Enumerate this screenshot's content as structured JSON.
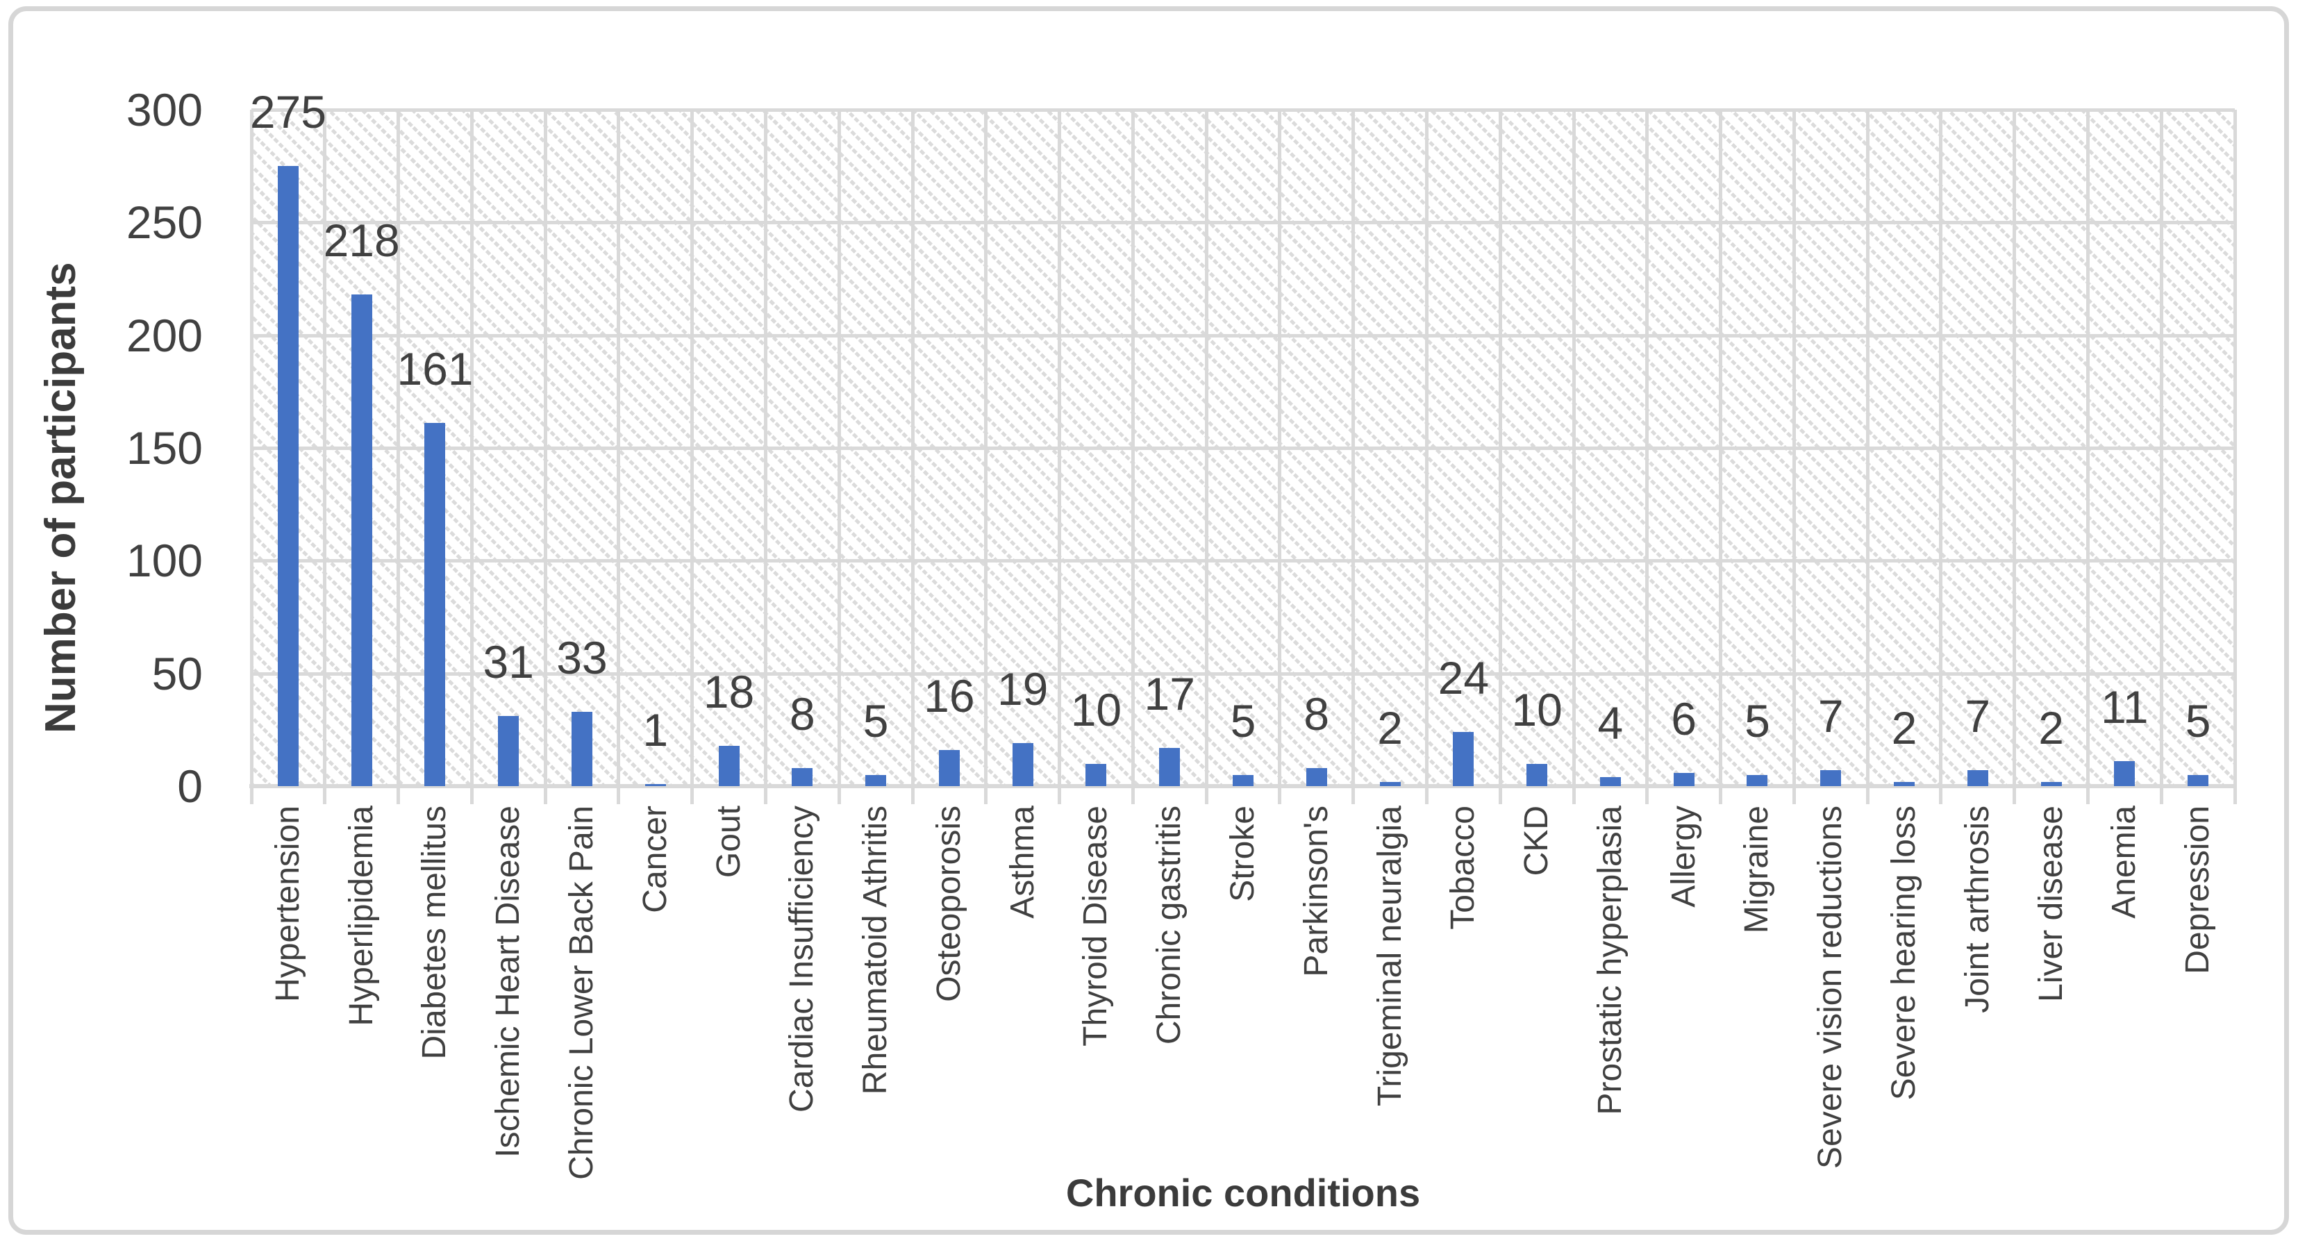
{
  "figure": {
    "background": "#ffffff",
    "border_color": "#d6d6d6"
  },
  "chart_data": {
    "type": "bar",
    "title": "",
    "xlabel": "Chronic conditions",
    "ylabel": "Number of participants",
    "categories": [
      "Hypertension",
      "Hyperlipidemia",
      "Diabetes mellitus",
      "Ischemic Heart Disease",
      "Chronic Lower Back Pain",
      "Cancer",
      "Gout",
      "Cardiac Insufficiency",
      "Rheumatoid Athritis",
      "Osteoporosis",
      "Asthma",
      "Thyroid Disease",
      "Chronic gastritis",
      "Stroke",
      "Parkinson's",
      "Trigeminal neuralgia",
      "Tobacco",
      "CKD",
      "Prostatic hyperplasia",
      "Allergy",
      "Migraine",
      "Severe vision reductions",
      "Severe hearing loss",
      "Joint arthrosis",
      "Liver disease",
      "Anemia",
      "Depression"
    ],
    "values": [
      275,
      218,
      161,
      31,
      33,
      1,
      18,
      8,
      5,
      16,
      19,
      10,
      17,
      5,
      8,
      2,
      24,
      10,
      4,
      6,
      5,
      7,
      2,
      7,
      2,
      11,
      5
    ],
    "ylim": [
      0,
      300
    ],
    "yticks": [
      0,
      50,
      100,
      150,
      200,
      250,
      300
    ],
    "legend": "none",
    "grid": "horizontal and vertical light gray gridlines over diagonal hatch fill",
    "data_labels": "outside end",
    "bar_color": "#4472C4",
    "gridline_color": "#D9D9D9",
    "hatch_color": "#DBDBDB",
    "label_color": "#404040"
  }
}
